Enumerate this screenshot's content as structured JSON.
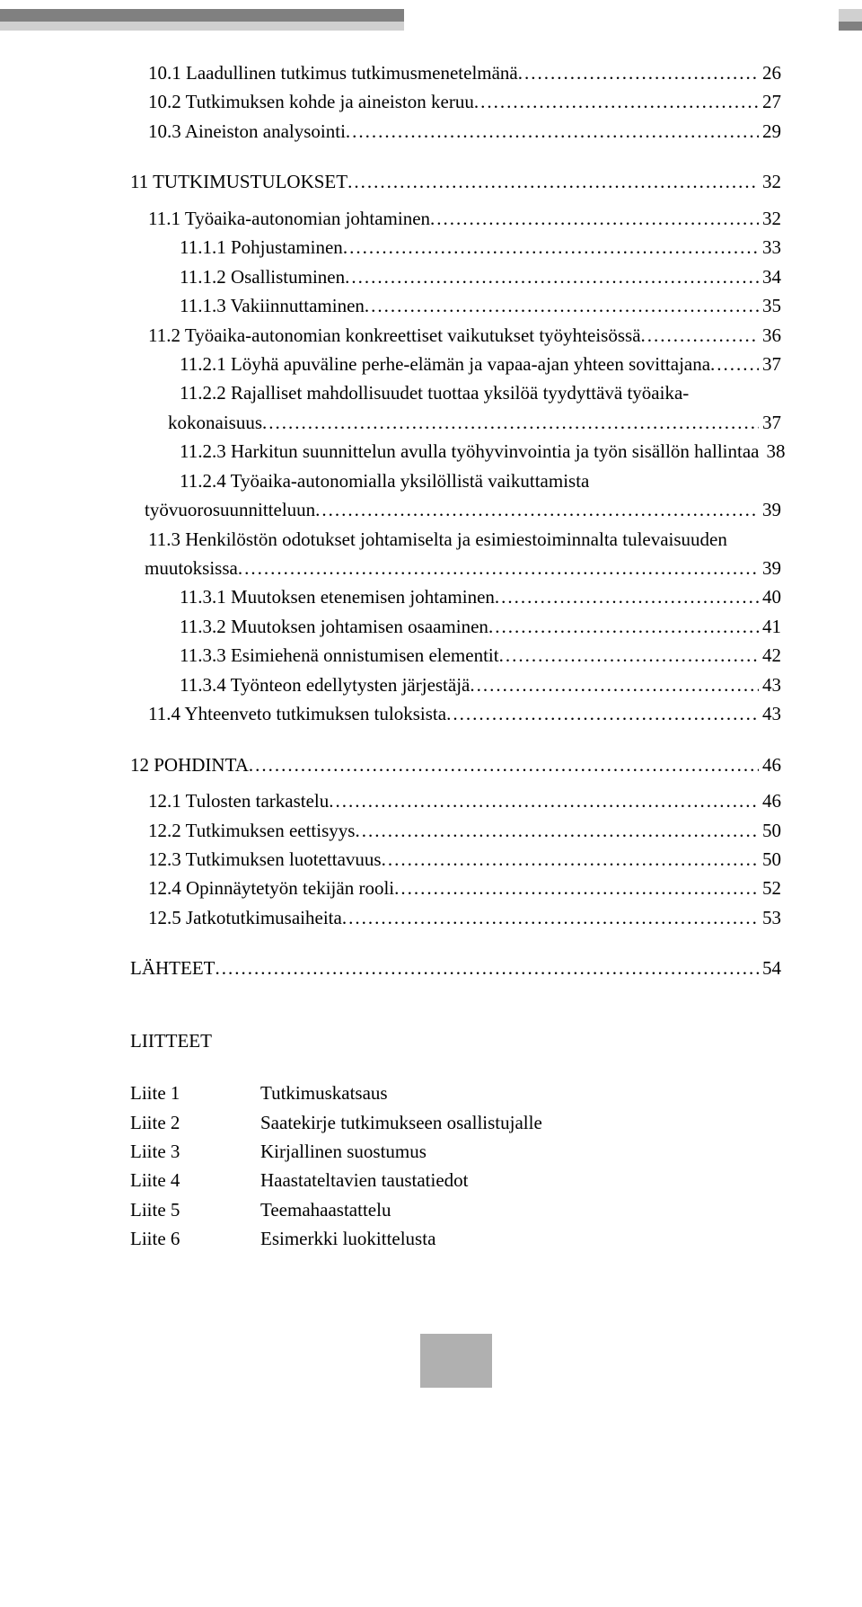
{
  "colors": {
    "text": "#000000",
    "bg": "#ffffff",
    "bar_dark": "#808080",
    "bar_light": "#d0d0d0",
    "footer_block": "#b0b0b0"
  },
  "typography": {
    "font_family": "Times New Roman",
    "font_size_pt": 12,
    "line_height": 1.45
  },
  "toc": [
    {
      "indent": "level1",
      "label": "10.1 Laadullinen tutkimus tutkimusmenetelmänä",
      "page": "26"
    },
    {
      "indent": "level1",
      "label": "10.2 Tutkimuksen kohde ja aineiston keruu",
      "page": "27"
    },
    {
      "indent": "level1",
      "label": "10.3 Aineiston analysointi",
      "page": "29"
    },
    {
      "spacer": "m"
    },
    {
      "indent": "top",
      "label": "11 TUTKIMUSTULOKSET",
      "page": "32"
    },
    {
      "spacer": "s"
    },
    {
      "indent": "level1",
      "label": "11.1 Työaika-autonomian johtaminen",
      "page": "32"
    },
    {
      "indent": "level2",
      "label": "11.1.1 Pohjustaminen",
      "page": "33"
    },
    {
      "indent": "level2",
      "label": "11.1.2 Osallistuminen",
      "page": "34"
    },
    {
      "indent": "level2",
      "label": "11.1.3 Vakiinnuttaminen",
      "page": "35"
    },
    {
      "indent": "level1",
      "label": "11.2 Työaika-autonomian konkreettiset vaikutukset työyhteisössä",
      "page": "36"
    },
    {
      "indent": "level2",
      "label": "11.2.1 Löyhä apuväline perhe-elämän ja vapaa-ajan yhteen sovittajana",
      "page": "37"
    },
    {
      "indent": "level2",
      "label_lines": [
        "11.2.2 Rajalliset mahdollisuudet tuottaa yksilöä tyydyttävä työaika-",
        "kokonaisuus"
      ],
      "cont_indent": "cont",
      "page": "37"
    },
    {
      "indent": "level2",
      "label": "11.2.3 Harkitun suunnittelun avulla työhyvinvointia ja työn sisällön hallintaa",
      "page": "38",
      "no_leader": true
    },
    {
      "indent": "level2",
      "label_lines": [
        "11.2.4 Työaika-autonomialla yksilöllistä vaikuttamista",
        "työvuorosuunnitteluun"
      ],
      "cont_indent": "cont2",
      "page": "39"
    },
    {
      "indent": "level1",
      "label_lines": [
        "11.3 Henkilöstön odotukset johtamiselta ja esimiestoiminnalta tulevaisuuden",
        "muutoksissa"
      ],
      "cont_indent": "cont2",
      "page": "39"
    },
    {
      "indent": "level2",
      "label": "11.3.1 Muutoksen etenemisen johtaminen",
      "page": "40"
    },
    {
      "indent": "level2",
      "label": "11.3.2 Muutoksen johtamisen osaaminen",
      "page": "41"
    },
    {
      "indent": "level2",
      "label": "11.3.3 Esimiehenä onnistumisen elementit",
      "page": "42"
    },
    {
      "indent": "level2",
      "label": "11.3.4 Työnteon edellytysten järjestäjä",
      "page": "43"
    },
    {
      "indent": "level1",
      "label": "11.4 Yhteenveto tutkimuksen tuloksista",
      "page": "43"
    },
    {
      "spacer": "m"
    },
    {
      "indent": "top",
      "label": "12 POHDINTA",
      "page": "46"
    },
    {
      "spacer": "s"
    },
    {
      "indent": "level1",
      "label": "12.1 Tulosten tarkastelu",
      "page": "46"
    },
    {
      "indent": "level1",
      "label": "12.2 Tutkimuksen eettisyys",
      "page": "50"
    },
    {
      "indent": "level1",
      "label": "12.3 Tutkimuksen luotettavuus",
      "page": "50"
    },
    {
      "indent": "level1",
      "label": "12.4 Opinnäytetyön tekijän rooli",
      "page": "52"
    },
    {
      "indent": "level1",
      "label": "12.5 Jatkotutkimusaiheita",
      "page": "53"
    },
    {
      "spacer": "m"
    },
    {
      "indent": "top",
      "label": "LÄHTEET",
      "page": "54"
    }
  ],
  "liitteet_heading": "LIITTEET",
  "liitteet": [
    {
      "key": "Liite 1",
      "value": "Tutkimuskatsaus"
    },
    {
      "key": "Liite 2",
      "value": "Saatekirje tutkimukseen osallistujalle"
    },
    {
      "key": "Liite 3",
      "value": "Kirjallinen suostumus"
    },
    {
      "key": "Liite 4",
      "value": "Haastateltavien taustatiedot"
    },
    {
      "key": "Liite 5",
      "value": "Teemahaastattelu"
    },
    {
      "key": "Liite 6",
      "value": "Esimerkki luokittelusta"
    }
  ]
}
